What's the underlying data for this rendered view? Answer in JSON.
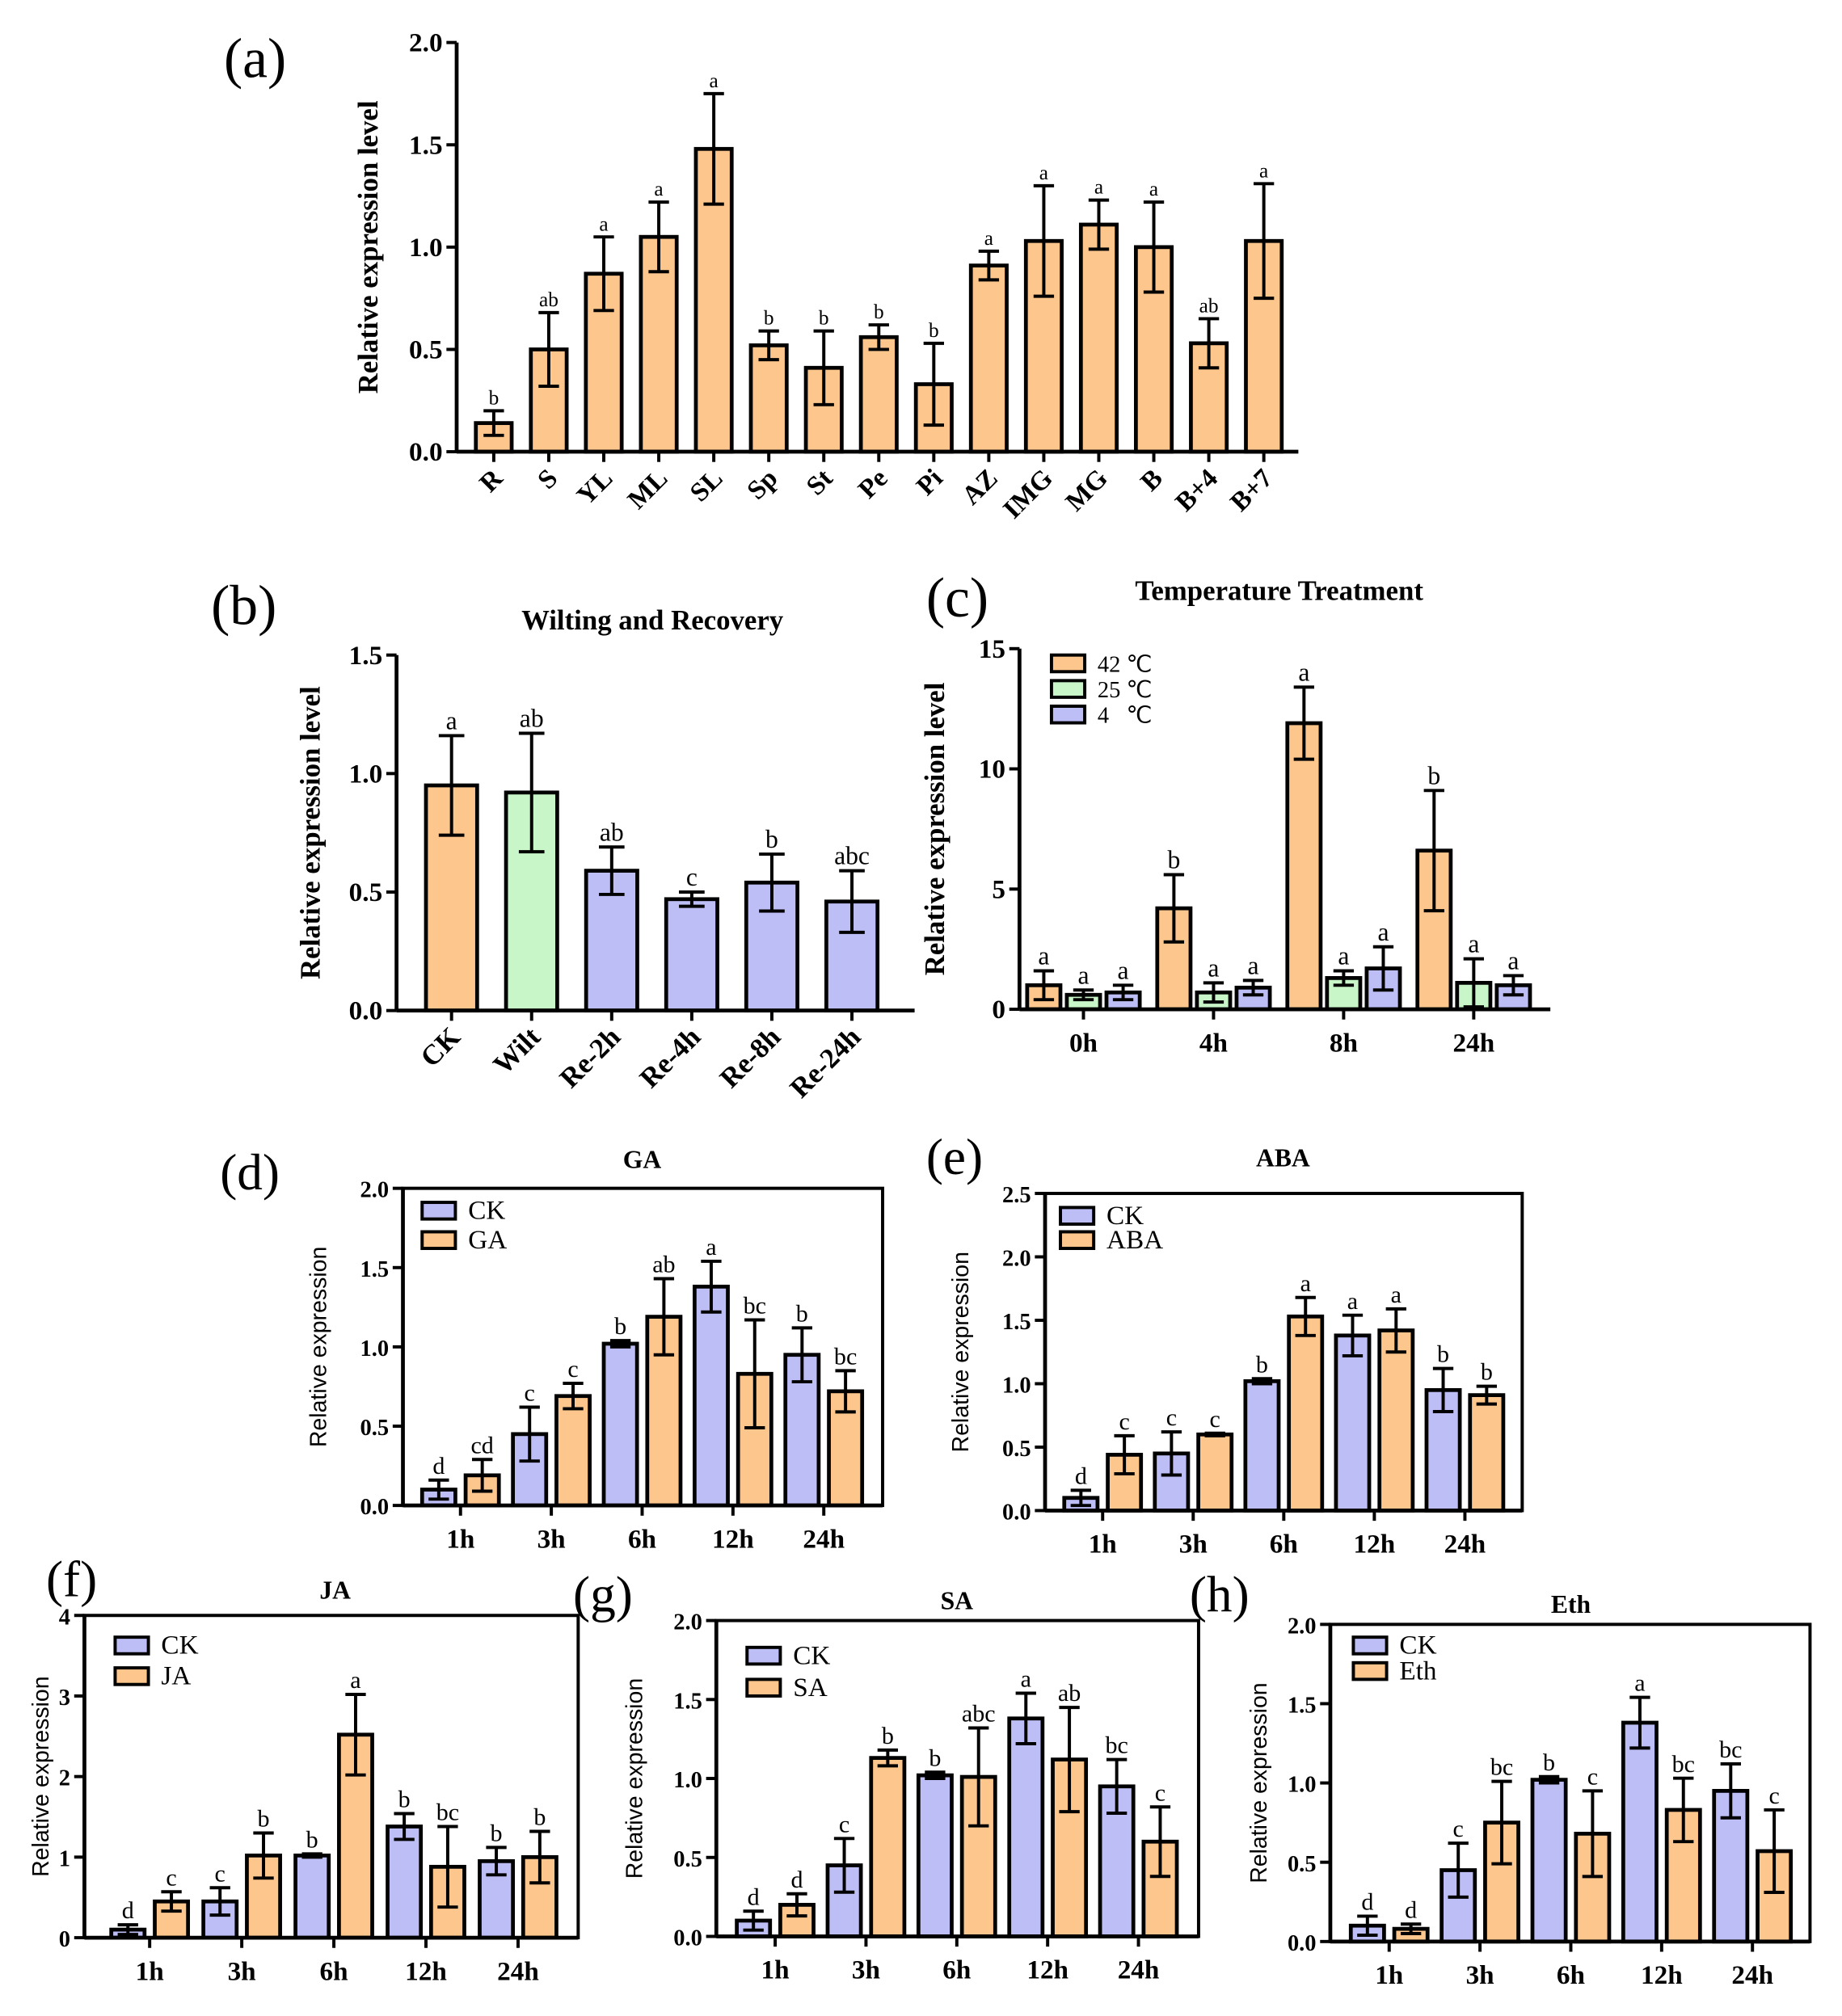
{
  "chart_data": [
    {
      "panel_label": "(a)",
      "type": "bar",
      "title": "",
      "ylabel": "Relative expression level",
      "xlabel": "",
      "ylim": [
        0,
        2
      ],
      "yticks": [
        0,
        0.5,
        1,
        1.5,
        2
      ],
      "ytick_labels": [
        "0.0",
        "0.5",
        "1.0",
        "1.5",
        "2.0"
      ],
      "categories": [
        "R",
        "S",
        "YL",
        "ML",
        "SL",
        "Sp",
        "St",
        "Pe",
        "Pi",
        "AZ",
        "IMG",
        "MG",
        "B",
        "B+4",
        "B+7"
      ],
      "series": [
        {
          "name": "",
          "color": "#FDC68C",
          "values": [
            0.14,
            0.5,
            0.87,
            1.05,
            1.48,
            0.52,
            0.41,
            0.56,
            0.33,
            0.91,
            1.03,
            1.11,
            1.0,
            0.53,
            1.03
          ],
          "errors": [
            0.06,
            0.18,
            0.18,
            0.17,
            0.27,
            0.07,
            0.18,
            0.06,
            0.2,
            0.07,
            0.27,
            0.12,
            0.22,
            0.12,
            0.28
          ],
          "letters": [
            "b",
            "ab",
            "a",
            "a",
            "a",
            "b",
            "b",
            "b",
            "b",
            "a",
            "a",
            "a",
            "a",
            "ab",
            "a"
          ]
        }
      ],
      "legend": []
    },
    {
      "panel_label": "(b)",
      "type": "bar",
      "title": "Wilting and Recovery",
      "ylabel": "Relative expression level",
      "xlabel": "",
      "ylim": [
        0,
        1.5
      ],
      "yticks": [
        0,
        0.5,
        1,
        1.5
      ],
      "ytick_labels": [
        "0.0",
        "0.5",
        "1.0",
        "1.5"
      ],
      "categories": [
        "CK",
        "Wilt",
        "Re-2h",
        "Re-4h",
        "Re-8h",
        "Re-24h"
      ],
      "series": [
        {
          "name": "",
          "colors": [
            "#FDC68C",
            "#C8F6C8",
            "#BEBEF6",
            "#BEBEF6",
            "#BEBEF6",
            "#BEBEF6"
          ],
          "values": [
            0.95,
            0.92,
            0.59,
            0.47,
            0.54,
            0.46
          ],
          "errors": [
            0.21,
            0.25,
            0.1,
            0.03,
            0.12,
            0.13
          ],
          "letters": [
            "a",
            "ab",
            "ab",
            "c",
            "b",
            "abc"
          ]
        }
      ],
      "legend": []
    },
    {
      "panel_label": "(c)",
      "type": "bar",
      "title": "Temperature Treatment",
      "ylabel": "Relative expression level",
      "xlabel": "",
      "ylim": [
        0,
        15
      ],
      "yticks": [
        0,
        5,
        10,
        15
      ],
      "ytick_labels": [
        "0",
        "5",
        "10",
        "15"
      ],
      "categories": [
        "0h",
        "4h",
        "8h",
        "24h"
      ],
      "series": [
        {
          "name": "42 ℃",
          "color": "#FDC68C",
          "values": [
            1.0,
            4.2,
            11.9,
            6.6
          ],
          "errors": [
            0.6,
            1.4,
            1.5,
            2.5
          ],
          "letters": [
            "a",
            "b",
            "a",
            "b"
          ]
        },
        {
          "name": "25 ℃",
          "color": "#C8F6C8",
          "values": [
            0.6,
            0.7,
            1.3,
            1.1
          ],
          "errors": [
            0.2,
            0.4,
            0.3,
            1.0
          ],
          "letters": [
            "a",
            "a",
            "a",
            "a"
          ]
        },
        {
          "name": "4   ℃",
          "color": "#BEBEF6",
          "values": [
            0.7,
            0.9,
            1.7,
            1.0
          ],
          "errors": [
            0.3,
            0.3,
            0.9,
            0.4
          ],
          "letters": [
            "a",
            "a",
            "a",
            "a"
          ]
        }
      ]
    },
    {
      "panel_label": "(d)",
      "type": "bar",
      "title": "GA",
      "ylabel": "Relative expression",
      "xlabel": "",
      "ylim": [
        0,
        2
      ],
      "yticks": [
        0,
        0.5,
        1,
        1.5,
        2
      ],
      "ytick_labels": [
        "0.0",
        "0.5",
        "1.0",
        "1.5",
        "2.0"
      ],
      "categories": [
        "1h",
        "3h",
        "6h",
        "12h",
        "24h"
      ],
      "series": [
        {
          "name": "CK",
          "color": "#BEBEF6",
          "values": [
            0.1,
            0.45,
            1.02,
            1.38,
            0.95
          ],
          "errors": [
            0.06,
            0.17,
            0.02,
            0.16,
            0.17
          ],
          "letters": [
            "d",
            "c",
            "b",
            "a",
            "b"
          ]
        },
        {
          "name": "GA",
          "color": "#FDC68C",
          "values": [
            0.19,
            0.69,
            1.19,
            0.83,
            0.72
          ],
          "errors": [
            0.1,
            0.08,
            0.24,
            0.34,
            0.13
          ],
          "letters": [
            "cd",
            "c",
            "ab",
            "bc",
            "bc"
          ]
        }
      ]
    },
    {
      "panel_label": "(e)",
      "type": "bar",
      "title": "ABA",
      "ylabel": "Relative expression",
      "xlabel": "",
      "ylim": [
        0,
        2.5
      ],
      "yticks": [
        0,
        0.5,
        1,
        1.5,
        2,
        2.5
      ],
      "ytick_labels": [
        "0.0",
        "0.5",
        "1.0",
        "1.5",
        "2.0",
        "2.5"
      ],
      "categories": [
        "1h",
        "3h",
        "6h",
        "12h",
        "24h"
      ],
      "series": [
        {
          "name": "CK",
          "color": "#BEBEF6",
          "values": [
            0.1,
            0.45,
            1.02,
            1.38,
            0.95
          ],
          "errors": [
            0.06,
            0.17,
            0.02,
            0.16,
            0.17
          ],
          "letters": [
            "d",
            "c",
            "b",
            "a",
            "b"
          ]
        },
        {
          "name": "ABA",
          "color": "#FDC68C",
          "values": [
            0.44,
            0.6,
            1.53,
            1.42,
            0.91
          ],
          "errors": [
            0.15,
            0.01,
            0.15,
            0.17,
            0.07
          ],
          "letters": [
            "c",
            "c",
            "a",
            "a",
            "b"
          ]
        }
      ]
    },
    {
      "panel_label": "(f)",
      "type": "bar",
      "title": "JA",
      "ylabel": "Relative expression",
      "xlabel": "",
      "ylim": [
        0,
        4
      ],
      "yticks": [
        0,
        1,
        2,
        3,
        4
      ],
      "ytick_labels": [
        "0",
        "1",
        "2",
        "3",
        "4"
      ],
      "categories": [
        "1h",
        "3h",
        "6h",
        "12h",
        "24h"
      ],
      "series": [
        {
          "name": "CK",
          "color": "#BEBEF6",
          "values": [
            0.1,
            0.45,
            1.02,
            1.38,
            0.95
          ],
          "errors": [
            0.06,
            0.17,
            0.02,
            0.16,
            0.17
          ],
          "letters": [
            "d",
            "c",
            "b",
            "b",
            "b"
          ]
        },
        {
          "name": "JA",
          "color": "#FDC68C",
          "values": [
            0.45,
            1.02,
            2.52,
            0.88,
            1.0
          ],
          "errors": [
            0.12,
            0.28,
            0.5,
            0.5,
            0.32
          ],
          "letters": [
            "c",
            "b",
            "a",
            "bc",
            "b"
          ]
        }
      ]
    },
    {
      "panel_label": "(g)",
      "type": "bar",
      "title": "SA",
      "ylabel": "Relative expression",
      "xlabel": "",
      "ylim": [
        0,
        2
      ],
      "yticks": [
        0,
        0.5,
        1,
        1.5,
        2
      ],
      "ytick_labels": [
        "0.0",
        "0.5",
        "1.0",
        "1.5",
        "2.0"
      ],
      "categories": [
        "1h",
        "3h",
        "6h",
        "12h",
        "24h"
      ],
      "series": [
        {
          "name": "CK",
          "color": "#BEBEF6",
          "values": [
            0.1,
            0.45,
            1.02,
            1.38,
            0.95
          ],
          "errors": [
            0.06,
            0.17,
            0.02,
            0.16,
            0.17
          ],
          "letters": [
            "d",
            "c",
            "b",
            "a",
            "bc"
          ]
        },
        {
          "name": "SA",
          "color": "#FDC68C",
          "values": [
            0.2,
            1.13,
            1.01,
            1.12,
            0.6
          ],
          "errors": [
            0.07,
            0.05,
            0.31,
            0.33,
            0.22
          ],
          "letters": [
            "d",
            "b",
            "abc",
            "ab",
            "c"
          ]
        }
      ]
    },
    {
      "panel_label": "(h)",
      "type": "bar",
      "title": "Eth",
      "ylabel": "Relative expression",
      "xlabel": "",
      "ylim": [
        0,
        2
      ],
      "yticks": [
        0,
        0.5,
        1,
        1.5,
        2
      ],
      "ytick_labels": [
        "0.0",
        "0.5",
        "1.0",
        "1.5",
        "2.0"
      ],
      "categories": [
        "1h",
        "3h",
        "6h",
        "12h",
        "24h"
      ],
      "series": [
        {
          "name": "CK",
          "color": "#BEBEF6",
          "values": [
            0.1,
            0.45,
            1.02,
            1.38,
            0.95
          ],
          "errors": [
            0.06,
            0.17,
            0.02,
            0.16,
            0.17
          ],
          "letters": [
            "d",
            "c",
            "b",
            "a",
            "bc"
          ]
        },
        {
          "name": "Eth",
          "color": "#FDC68C",
          "values": [
            0.08,
            0.75,
            0.68,
            0.83,
            0.57
          ],
          "errors": [
            0.03,
            0.26,
            0.27,
            0.2,
            0.26
          ],
          "letters": [
            "d",
            "bc",
            "c",
            "bc",
            "c"
          ]
        }
      ]
    }
  ]
}
